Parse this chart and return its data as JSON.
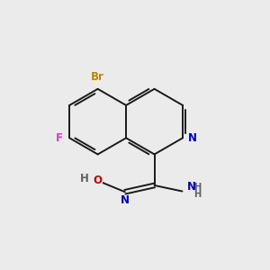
{
  "background_color": "#ebebeb",
  "bond_color": "#1a1a1a",
  "atom_colors": {
    "Br": "#b8860b",
    "F": "#cc44cc",
    "N": "#0000cc",
    "O": "#cc0000",
    "C": "#1a1a1a",
    "H": "#606060"
  },
  "lw": 1.4,
  "fs": 8.5
}
